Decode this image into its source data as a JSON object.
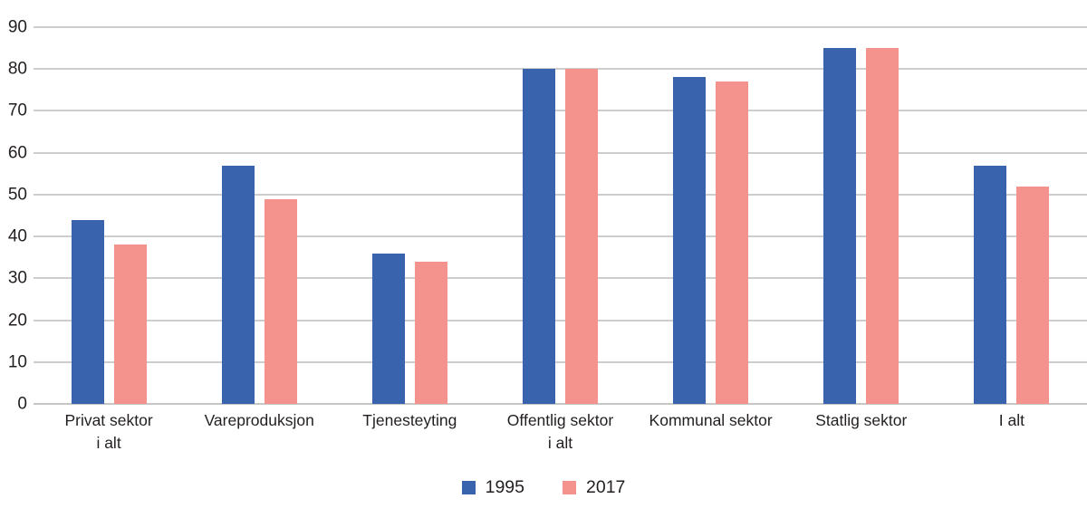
{
  "chart_data": {
    "type": "bar",
    "title": "",
    "xlabel": "",
    "ylabel": "",
    "categories": [
      "Privat sektor\ni alt",
      "Vareproduksjon",
      "Tjenesteyting",
      "Offentlig sektor\ni alt",
      "Kommunal sektor",
      "Statlig sektor",
      "I alt"
    ],
    "series": [
      {
        "name": "1995",
        "color": "#3A63AD",
        "values": [
          44,
          57,
          36,
          80,
          78,
          85,
          57
        ]
      },
      {
        "name": "2017",
        "color": "#F4928E",
        "values": [
          38,
          49,
          34,
          80,
          77,
          85,
          52
        ]
      }
    ],
    "ylim": [
      0,
      90
    ],
    "ytick_step": 10,
    "y_tick_labels": [
      "0",
      "10",
      "20",
      "30",
      "40",
      "50",
      "60",
      "70",
      "80",
      "90"
    ],
    "grid": true,
    "legend_position": "bottom-center",
    "gridline_color": "#9B9B9B",
    "baseline_color": "#8C8C8C",
    "text_color": "#231F20"
  }
}
